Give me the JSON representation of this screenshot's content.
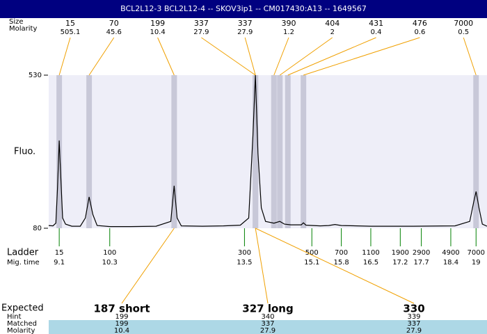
{
  "header": {
    "title": "BCL2L12-3  BCL2L12-4 -- SKOV3ip1 -- CM017430:A13 -- 1649567"
  },
  "chart_data": {
    "type": "line",
    "ylabel": "Fluo.",
    "color": "#000000",
    "ylim": [
      80,
      530
    ],
    "yticks": [
      80,
      530
    ],
    "xlim": [
      8.85,
      19.26
    ],
    "x": [
      8.85,
      8.95,
      9.02,
      9.06,
      9.1,
      9.14,
      9.18,
      9.25,
      9.4,
      9.6,
      9.72,
      9.81,
      9.9,
      10.0,
      10.3,
      10.8,
      11.4,
      11.75,
      11.83,
      11.9,
      12.0,
      12.5,
      13.0,
      13.4,
      13.6,
      13.7,
      13.76,
      13.82,
      13.9,
      14.0,
      14.2,
      14.34,
      14.45,
      14.6,
      14.85,
      14.9,
      14.96,
      15.3,
      15.5,
      15.65,
      15.8,
      16.5,
      17.5,
      18.5,
      18.85,
      18.95,
      19.0,
      19.07,
      19.15,
      19.26
    ],
    "values": [
      88,
      87,
      95,
      200,
      338,
      220,
      110,
      92,
      86,
      86,
      110,
      172,
      120,
      88,
      85,
      85,
      86,
      100,
      205,
      110,
      87,
      86,
      87,
      89,
      110,
      350,
      530,
      300,
      140,
      100,
      95,
      100,
      92,
      90,
      90,
      96,
      89,
      87,
      88,
      91,
      88,
      86,
      86,
      87,
      100,
      160,
      188,
      140,
      92,
      86
    ],
    "peaks": {
      "row_labels": [
        "Size",
        "Molarity"
      ],
      "sizes": [
        15,
        70,
        199,
        337,
        337,
        390,
        404,
        431,
        476,
        7000
      ],
      "molarities": [
        505.1,
        45.6,
        10.4,
        27.9,
        27.9,
        1.2,
        2,
        0.4,
        0.6,
        0.5
      ],
      "times": [
        9.1,
        9.81,
        11.83,
        13.76,
        13.76,
        14.2,
        14.34,
        14.53,
        14.9,
        19.0
      ]
    },
    "ladder": {
      "row_labels": [
        "Ladder",
        "Mig. time"
      ],
      "sizes": [
        15,
        100,
        300,
        500,
        700,
        1100,
        1900,
        2900,
        4900,
        7000
      ],
      "times": [
        9.1,
        10.3,
        13.5,
        15.1,
        15.8,
        16.5,
        17.2,
        17.7,
        18.4,
        19
      ]
    }
  },
  "expected": {
    "row_labels": [
      "Expected",
      "Hint",
      "Matched",
      "Molarity"
    ],
    "items": [
      {
        "name": "187 short",
        "hint": 199,
        "matched": 199,
        "molarity": 10.4
      },
      {
        "name": "327 long",
        "hint": 340,
        "matched": 337,
        "molarity": 27.9
      },
      {
        "name": "330",
        "hint": 339,
        "matched": 337,
        "molarity": 27.9
      }
    ]
  }
}
